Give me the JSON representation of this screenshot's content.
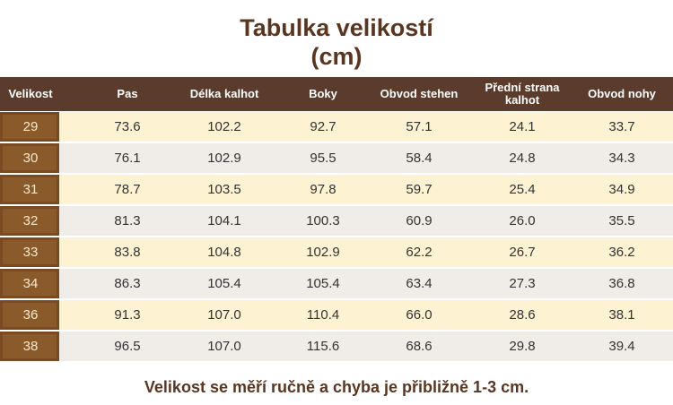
{
  "header": {
    "title": "Tabulka velikostí",
    "subtitle": "(cm)"
  },
  "table": {
    "columns": [
      "Velikost",
      "Pas",
      "Délka kalhot",
      "Boky",
      "Obvod stehen",
      "Přední strana kalhot",
      "Obvod nohy"
    ],
    "rows": [
      [
        "29",
        "73.6",
        "102.2",
        "92.7",
        "57.1",
        "24.1",
        "33.7"
      ],
      [
        "30",
        "76.1",
        "102.9",
        "95.5",
        "58.4",
        "24.8",
        "34.3"
      ],
      [
        "31",
        "78.7",
        "103.5",
        "97.8",
        "59.7",
        "25.4",
        "34.9"
      ],
      [
        "32",
        "81.3",
        "104.1",
        "100.3",
        "60.9",
        "26.0",
        "35.5"
      ],
      [
        "33",
        "83.8",
        "104.8",
        "102.9",
        "62.2",
        "26.7",
        "36.2"
      ],
      [
        "34",
        "86.3",
        "105.4",
        "105.4",
        "63.4",
        "27.3",
        "36.8"
      ],
      [
        "36",
        "91.3",
        "107.0",
        "110.4",
        "66.0",
        "28.6",
        "38.1"
      ],
      [
        "38",
        "96.5",
        "107.0",
        "115.6",
        "68.6",
        "29.8",
        "39.4"
      ]
    ]
  },
  "footer": {
    "note": "Velikost se měří ručně a chyba je přibližně 1-3 cm."
  }
}
